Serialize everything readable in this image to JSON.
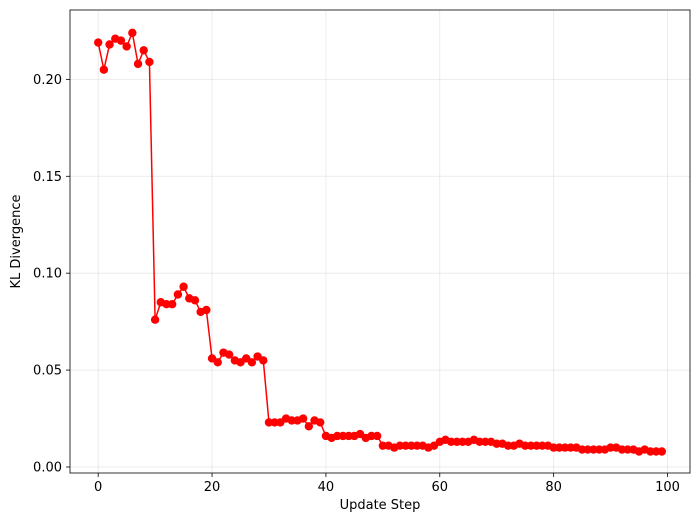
{
  "chart_data": {
    "type": "line",
    "title": "",
    "xlabel": "Update Step",
    "ylabel": "KL Divergence",
    "xlim": [
      -4.95,
      103.95
    ],
    "ylim": [
      -0.0031,
      0.2358
    ],
    "x_ticks": [
      0,
      20,
      40,
      60,
      80,
      100
    ],
    "x_tick_labels": [
      "0",
      "20",
      "40",
      "60",
      "80",
      "100"
    ],
    "y_ticks": [
      0.0,
      0.05,
      0.1,
      0.15,
      0.2
    ],
    "y_tick_labels": [
      "0.00",
      "0.05",
      "0.10",
      "0.15",
      "0.20"
    ],
    "grid": true,
    "legend": "none",
    "series": [
      {
        "color": "#ff0000",
        "marker": "circle",
        "x": [
          0,
          1,
          2,
          3,
          4,
          5,
          6,
          7,
          8,
          9,
          10,
          11,
          12,
          13,
          14,
          15,
          16,
          17,
          18,
          19,
          20,
          21,
          22,
          23,
          24,
          25,
          26,
          27,
          28,
          29,
          30,
          31,
          32,
          33,
          34,
          35,
          36,
          37,
          38,
          39,
          40,
          41,
          42,
          43,
          44,
          45,
          46,
          47,
          48,
          49,
          50,
          51,
          52,
          53,
          54,
          55,
          56,
          57,
          58,
          59,
          60,
          61,
          62,
          63,
          64,
          65,
          66,
          67,
          68,
          69,
          70,
          71,
          72,
          73,
          74,
          75,
          76,
          77,
          78,
          79,
          80,
          81,
          82,
          83,
          84,
          85,
          86,
          87,
          88,
          89,
          90,
          91,
          92,
          93,
          94,
          95,
          96,
          97,
          98,
          99
        ],
        "y": [
          0.219,
          0.205,
          0.218,
          0.221,
          0.22,
          0.217,
          0.224,
          0.208,
          0.215,
          0.209,
          0.076,
          0.085,
          0.084,
          0.084,
          0.089,
          0.093,
          0.087,
          0.086,
          0.08,
          0.081,
          0.056,
          0.054,
          0.059,
          0.058,
          0.055,
          0.054,
          0.056,
          0.054,
          0.057,
          0.055,
          0.023,
          0.023,
          0.023,
          0.025,
          0.024,
          0.024,
          0.025,
          0.021,
          0.024,
          0.023,
          0.016,
          0.015,
          0.016,
          0.016,
          0.016,
          0.016,
          0.017,
          0.015,
          0.016,
          0.016,
          0.011,
          0.011,
          0.01,
          0.011,
          0.011,
          0.011,
          0.011,
          0.011,
          0.01,
          0.011,
          0.013,
          0.014,
          0.013,
          0.013,
          0.013,
          0.013,
          0.014,
          0.013,
          0.013,
          0.013,
          0.012,
          0.012,
          0.011,
          0.011,
          0.012,
          0.011,
          0.011,
          0.011,
          0.011,
          0.011,
          0.01,
          0.01,
          0.01,
          0.01,
          0.01,
          0.009,
          0.009,
          0.009,
          0.009,
          0.009,
          0.01,
          0.01,
          0.009,
          0.009,
          0.009,
          0.008,
          0.009,
          0.008,
          0.008,
          0.008
        ]
      }
    ]
  }
}
